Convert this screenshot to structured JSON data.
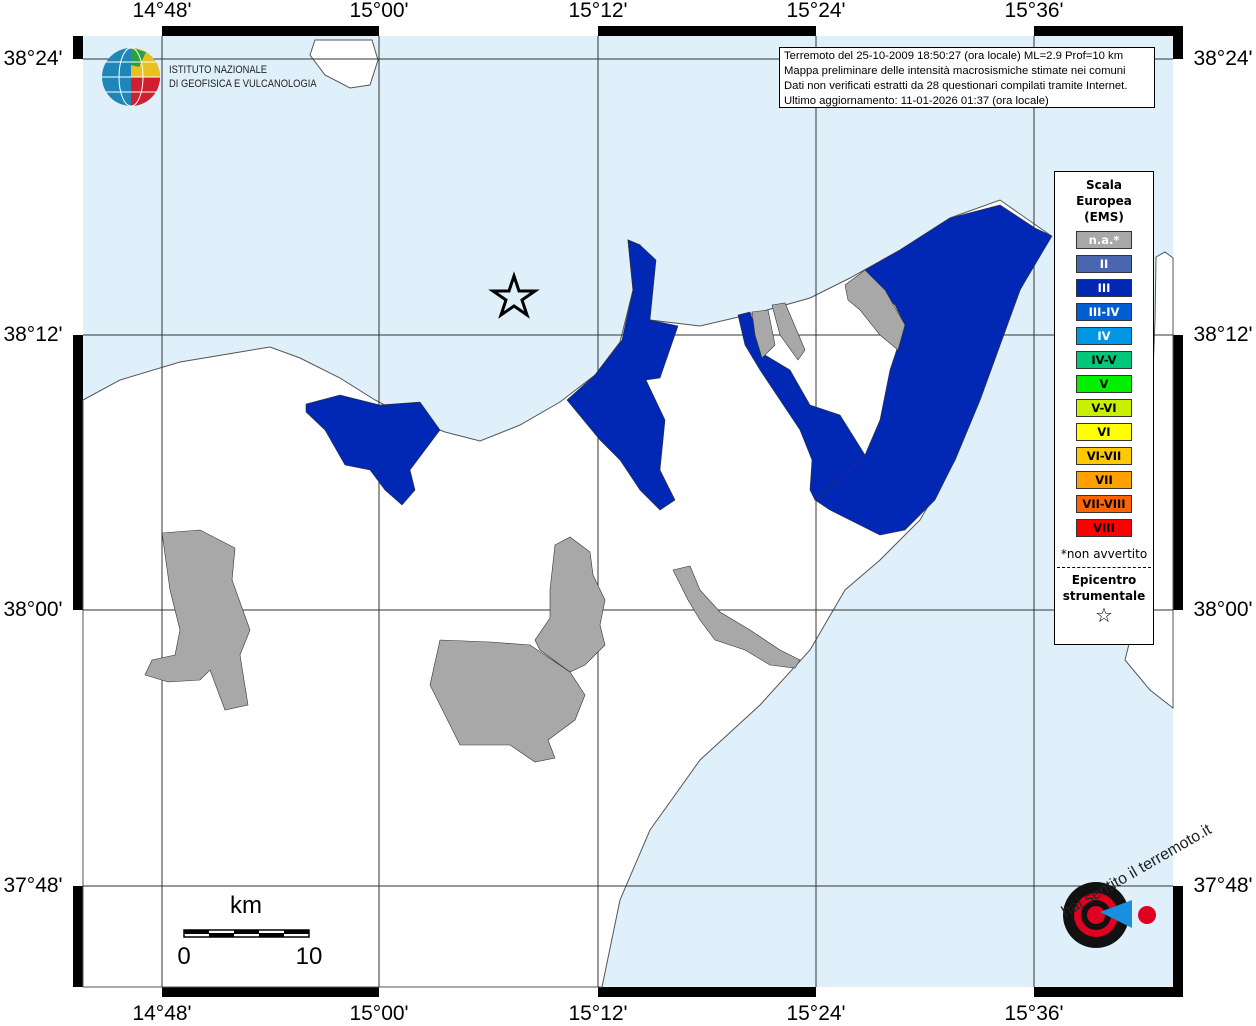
{
  "map": {
    "lon_ticks": [
      "14°48'",
      "15°00'",
      "15°12'",
      "15°24'",
      "15°36'"
    ],
    "lat_ticks": [
      "38°24'",
      "38°12'",
      "38°00'",
      "37°48'"
    ],
    "colors": {
      "sea": "#dff0fb",
      "land": "#ffffff",
      "intensity_III": "#0028b4",
      "not_felt": "#a8a8a8"
    },
    "epicenter_icon": "star-outline"
  },
  "info": {
    "lines": [
      "Terremoto del 25-10-2009 18:50:27 (ora locale) ML=2.9 Prof=10 km",
      "Mappa preliminare delle intensità macrosismiche stimate nei comuni",
      "Dati non verificati estratti da 28 questionari compilati tramite Internet.",
      "Ultimo aggiornamento: 11-01-2026 01:37 (ora locale)"
    ]
  },
  "legend": {
    "title": [
      "Scala",
      "Europea",
      "(EMS)"
    ],
    "items": [
      {
        "label": "n.a.*",
        "color": "#a8a8a8",
        "text": "#fff"
      },
      {
        "label": "II",
        "color": "#4a66b0",
        "text": "#fff"
      },
      {
        "label": "III",
        "color": "#0028b4",
        "text": "#fff"
      },
      {
        "label": "III-IV",
        "color": "#005ed2",
        "text": "#fff"
      },
      {
        "label": "IV",
        "color": "#0096e6",
        "text": "#fff"
      },
      {
        "label": "IV-V",
        "color": "#00c878",
        "text": "#000"
      },
      {
        "label": "V",
        "color": "#00f000",
        "text": "#000"
      },
      {
        "label": "V-VI",
        "color": "#c8f000",
        "text": "#000"
      },
      {
        "label": "VI",
        "color": "#ffff00",
        "text": "#000"
      },
      {
        "label": "VI-VII",
        "color": "#ffc800",
        "text": "#000"
      },
      {
        "label": "VII",
        "color": "#ffa000",
        "text": "#000"
      },
      {
        "label": "VII-VIII",
        "color": "#ff6400",
        "text": "#000"
      },
      {
        "label": "VIII",
        "color": "#ff0000",
        "text": "#000"
      }
    ],
    "note": "*non avvertito",
    "epicenter": [
      "Epicentro",
      "strumentale"
    ]
  },
  "scale": {
    "unit": "km",
    "min": "0",
    "max": "10"
  },
  "logos": {
    "ingv": [
      "ISTITUTO NAZIONALE",
      "DI GEOFISICA E VULCANOLOGIA"
    ],
    "hsit": "www.haisentitoilterremoto.it"
  }
}
